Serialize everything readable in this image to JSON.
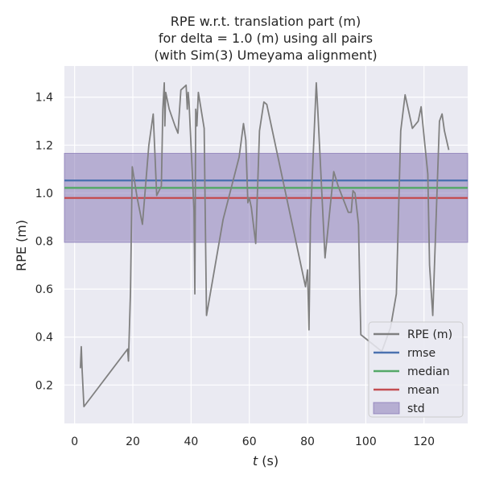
{
  "chart_data": {
    "type": "line",
    "title_lines": [
      "RPE w.r.t. translation part (m)",
      "for delta = 1.0 (m) using all pairs",
      "(with Sim(3) Umeyama alignment)"
    ],
    "xlabel_var": "t",
    "xlabel_unit": " (s)",
    "ylabel": "RPE (m)",
    "xlim": [
      -3.5,
      135
    ],
    "ylim": [
      0.04,
      1.53
    ],
    "xticks": [
      0,
      20,
      40,
      60,
      80,
      100,
      120
    ],
    "yticks": [
      0.2,
      0.4,
      0.6,
      0.8,
      1.0,
      1.2,
      1.4
    ],
    "xtick_labels": [
      "0",
      "20",
      "40",
      "60",
      "80",
      "100",
      "120"
    ],
    "ytick_labels": [
      "0.2",
      "0.4",
      "0.6",
      "0.8",
      "1.0",
      "1.2",
      "1.4"
    ],
    "grid": true,
    "legend_placement": "bottom-right",
    "series": [
      {
        "name": "RPE (m)",
        "color": "#808080",
        "x": [
          2.0,
          2.3,
          2.6,
          3.2,
          18.2,
          18.5,
          19.2,
          19.8,
          21.5,
          23.3,
          25.5,
          27.0,
          28.2,
          29.8,
          30.3,
          30.8,
          31.0,
          31.3,
          32.5,
          34.5,
          35.5,
          36.5,
          38.3,
          38.7,
          39.0,
          39.3,
          41.0,
          41.3,
          41.6,
          42.0,
          42.5,
          44.5,
          45.3,
          51.0,
          56.5,
          58.0,
          58.8,
          59.5,
          60.0,
          60.7,
          62.2,
          63.5,
          65.0,
          66.0,
          79.3,
          80.0,
          80.3,
          80.5,
          81.0,
          83.0,
          83.5,
          86.0,
          89.0,
          90.5,
          94.0,
          95.0,
          95.6,
          96.3,
          97.5,
          98.0,
          98.3,
          105.5,
          108.5,
          110.5,
          112.0,
          113.5,
          116.0,
          118.0,
          119.0,
          120.3,
          121.3,
          121.9,
          123.0,
          125.3,
          126.2,
          127.0,
          128.5
        ],
        "y": [
          0.27,
          0.36,
          0.26,
          0.11,
          0.35,
          0.3,
          0.59,
          1.11,
          0.98,
          0.87,
          1.2,
          1.33,
          0.99,
          1.03,
          1.35,
          1.46,
          1.28,
          1.42,
          1.35,
          1.28,
          1.25,
          1.43,
          1.45,
          1.35,
          1.42,
          1.38,
          0.93,
          0.58,
          1.35,
          1.28,
          1.42,
          1.27,
          0.49,
          0.89,
          1.15,
          1.29,
          1.22,
          0.96,
          0.98,
          0.94,
          0.79,
          1.26,
          1.38,
          1.37,
          0.61,
          0.68,
          0.53,
          0.43,
          0.89,
          1.46,
          1.35,
          0.73,
          1.09,
          1.03,
          0.92,
          0.92,
          1.01,
          1.0,
          0.87,
          0.57,
          0.41,
          0.34,
          0.44,
          0.58,
          1.26,
          1.41,
          1.27,
          1.3,
          1.36,
          1.2,
          1.08,
          0.7,
          0.49,
          1.3,
          1.33,
          1.26,
          1.18
        ]
      }
    ],
    "stats": {
      "rmse": 1.053,
      "median": 1.022,
      "mean": 0.98,
      "std_band": [
        0.795,
        1.166
      ]
    },
    "legend": [
      {
        "label": "RPE (m)",
        "kind": "line",
        "color": "#808080"
      },
      {
        "label": "rmse",
        "kind": "line",
        "color": "#4c72b0"
      },
      {
        "label": "median",
        "kind": "line",
        "color": "#55a868"
      },
      {
        "label": "mean",
        "kind": "line",
        "color": "#c44e52"
      },
      {
        "label": "std",
        "kind": "patch",
        "color": "#8172b2"
      }
    ],
    "colors": {
      "plot_background": "#eaeaf2",
      "grid": "#ffffff",
      "rmse": "#4c72b0",
      "median": "#55a868",
      "mean": "#c44e52",
      "std": "#8172b2",
      "series": "#808080"
    }
  }
}
